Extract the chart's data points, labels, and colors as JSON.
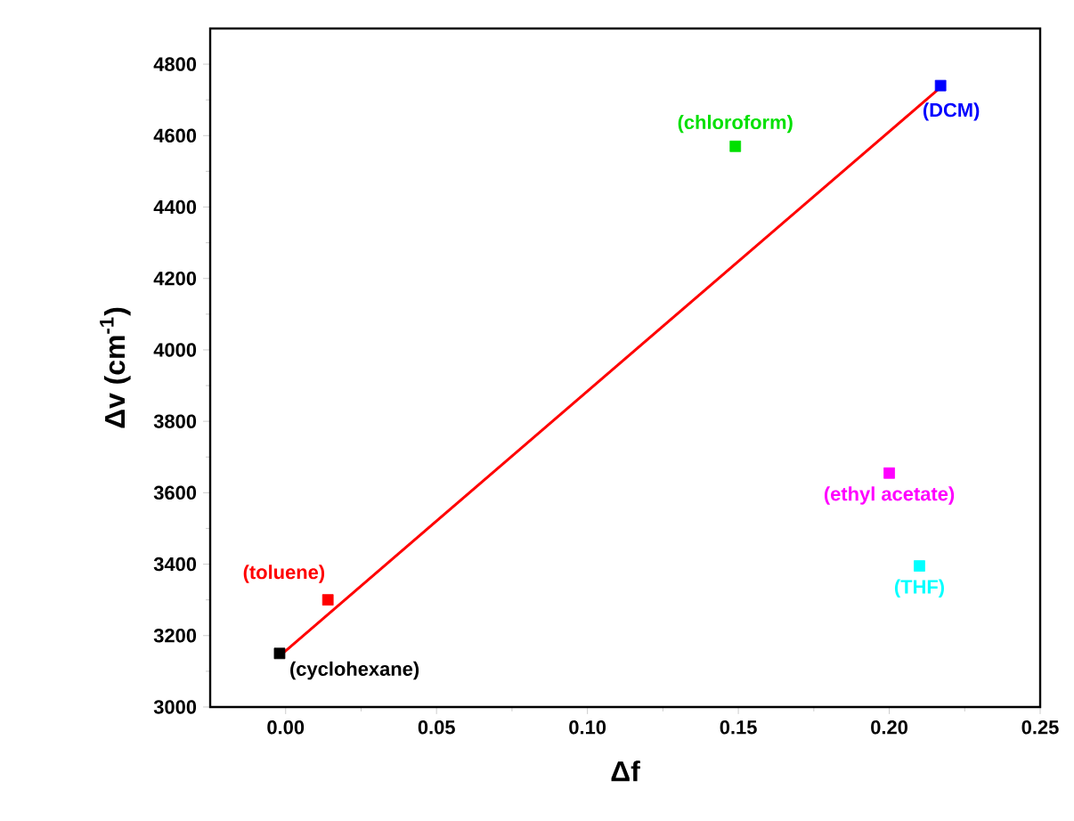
{
  "chart_data": {
    "type": "scatter",
    "xlabel": "Δf",
    "ylabel": "Δv (cm$^{-1}$)",
    "marker": "square",
    "grid": false,
    "xlim": [
      -0.025,
      0.25
    ],
    "xticks": [
      {
        "value": 0,
        "label": "0.00"
      },
      0.05,
      {
        "value": 0.1,
        "label": "0.10"
      },
      0.15,
      {
        "value": 0.2,
        "label": "0.20"
      },
      0.25
    ],
    "ylim": [
      3000,
      4900
    ],
    "yticks": [
      3000,
      3200,
      3400,
      3600,
      3800,
      4000,
      4200,
      4400,
      4600,
      4800
    ],
    "series": [
      {
        "name": "(cyclohexane)",
        "color": "#000000",
        "x": [
          -0.002
        ],
        "values": [
          3150
        ]
      },
      {
        "name": "(toluene)",
        "color": "#ff0000",
        "x": [
          0.014
        ],
        "values": [
          3300
        ]
      },
      {
        "name": "(chloroform)",
        "color": "#00e000",
        "x": [
          0.149
        ],
        "values": [
          4570
        ]
      },
      {
        "name": "(DCM)",
        "color": "#0000ff",
        "x": [
          0.217
        ],
        "values": [
          4740
        ]
      },
      {
        "name": "(ethyl acetate)",
        "color": "#ff00ff",
        "x": [
          0.2
        ],
        "values": [
          3655
        ]
      },
      {
        "name": "(THF)",
        "color": "#00ffff",
        "x": [
          0.21
        ],
        "values": [
          3395
        ]
      },
      {
        "type": "line",
        "marker": "none",
        "color": "#ff0000",
        "x": [
          -0.001,
          0.217
        ],
        "values": [
          3150,
          4735
        ]
      }
    ]
  }
}
